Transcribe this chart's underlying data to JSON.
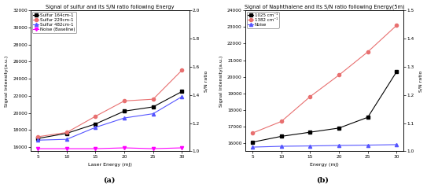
{
  "fig_width": 5.43,
  "fig_height": 2.34,
  "dpi": 100,
  "background_color": "#ffffff",
  "panel_a": {
    "title": "Signal of sulfur and its S/N ratio following Energy",
    "xlabel": "Laser Energy (mJ)",
    "ylabel_left": "Signal Intensity(a.u.)",
    "ylabel_right": "S/N ratio",
    "x": [
      5,
      10,
      15,
      20,
      25,
      30
    ],
    "ylim_left": [
      15500,
      32000
    ],
    "ylim_right": [
      1.0,
      2.0
    ],
    "yticks_left": [
      16000,
      18000,
      20000,
      22000,
      24000,
      26000,
      28000,
      30000,
      32000
    ],
    "yticks_right": [
      1.0,
      1.2,
      1.4,
      1.6,
      1.8,
      2.0
    ],
    "series": [
      {
        "label": "Sulfur 164cm-1",
        "color": "black",
        "marker": "s",
        "linestyle": "-",
        "linewidth": 0.8,
        "markersize": 3,
        "y": [
          17000,
          17600,
          18700,
          20200,
          20700,
          22500
        ]
      },
      {
        "label": "Sulfur 229cm-1",
        "color": "#e87070",
        "marker": "o",
        "linestyle": "-",
        "linewidth": 0.8,
        "markersize": 3,
        "y": [
          17200,
          17700,
          19600,
          21400,
          21600,
          25000
        ]
      },
      {
        "label": "Sulfur 482cm-1",
        "color": "#5555ff",
        "marker": "^",
        "linestyle": "-",
        "linewidth": 0.8,
        "markersize": 3,
        "y": [
          16800,
          16900,
          18300,
          19400,
          19900,
          21900
        ]
      },
      {
        "label": "Noise (Baseline)",
        "color": "#ff00ff",
        "marker": "v",
        "linestyle": "-",
        "linewidth": 0.8,
        "markersize": 3,
        "y": [
          15800,
          15800,
          15800,
          15900,
          15800,
          15900
        ]
      }
    ]
  },
  "panel_b": {
    "title": "Signal of Naphthalene and its S/N ratio following Energy(5m)",
    "xlabel": "Energy (mJ)",
    "ylabel_left": "Signal Intensity(a.u.)",
    "ylabel_right": "S/N ratio",
    "x": [
      5,
      10,
      15,
      20,
      25,
      30
    ],
    "ylim_left": [
      15500,
      24000
    ],
    "ylim_right": [
      1.0,
      1.5
    ],
    "yticks_left": [
      16000,
      17000,
      18000,
      19000,
      20000,
      21000,
      22000,
      23000,
      24000
    ],
    "yticks_right": [
      1.0,
      1.1,
      1.2,
      1.3,
      1.4,
      1.5
    ],
    "series": [
      {
        "label": "1025 cm⁻¹",
        "color": "black",
        "marker": "s",
        "linestyle": "-",
        "linewidth": 0.8,
        "markersize": 3,
        "y": [
          16050,
          16400,
          16650,
          16900,
          17550,
          20300
        ]
      },
      {
        "label": "1382 cm⁻¹",
        "color": "#e87070",
        "marker": "o",
        "linestyle": "-",
        "linewidth": 0.8,
        "markersize": 3,
        "y": [
          16600,
          17300,
          18800,
          20100,
          21500,
          23100
        ]
      },
      {
        "label": "Noise",
        "color": "#5555ff",
        "marker": "^",
        "linestyle": "-",
        "linewidth": 0.8,
        "markersize": 3,
        "y": [
          15750,
          15800,
          15820,
          15850,
          15870,
          15900
        ]
      }
    ]
  }
}
